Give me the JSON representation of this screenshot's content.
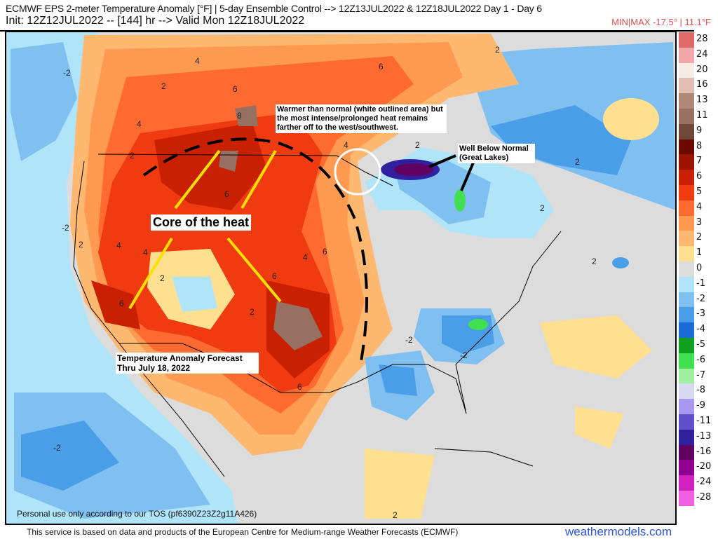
{
  "header": {
    "title": "ECMWF EPS 2-meter Temperature Anomaly [°F] | 5-day Ensemble Control --> 12Z13JUL2022 & 12Z18JUL2022   Day 1 - Day 6",
    "init_line": "Init: 12Z12JUL2022 -- [144] hr --> Valid Mon 12Z18JUL2022",
    "minmax": "MIN|MAX -17.5° | 11.1°F"
  },
  "legend": [
    {
      "label": "28",
      "color": "#e06a6a"
    },
    {
      "label": "24",
      "color": "#f2a8a8"
    },
    {
      "label": "20",
      "color": "#f5ece6"
    },
    {
      "label": "16",
      "color": "#e2beb2"
    },
    {
      "label": "13",
      "color": "#b08878"
    },
    {
      "label": "11",
      "color": "#967060"
    },
    {
      "label": "9",
      "color": "#6e4838"
    },
    {
      "label": "8",
      "color": "#6a0a00"
    },
    {
      "label": "7",
      "color": "#9a1400"
    },
    {
      "label": "6",
      "color": "#c82000"
    },
    {
      "label": "5",
      "color": "#f03a10"
    },
    {
      "label": "4",
      "color": "#ff6a30"
    },
    {
      "label": "3",
      "color": "#ff9a50"
    },
    {
      "label": "2",
      "color": "#ffb870"
    },
    {
      "label": "1",
      "color": "#ffe090"
    },
    {
      "label": "0",
      "color": "#dcdcdc"
    },
    {
      "label": "-1",
      "color": "#b0e4f8"
    },
    {
      "label": "-2",
      "color": "#80c0f0"
    },
    {
      "label": "-3",
      "color": "#4a9ee8"
    },
    {
      "label": "-4",
      "color": "#1a6ad8"
    },
    {
      "label": "-5",
      "color": "#10a020"
    },
    {
      "label": "-6",
      "color": "#40e050"
    },
    {
      "label": "-7",
      "color": "#a0f0a0"
    },
    {
      "label": "-8",
      "color": "#d8d8f0"
    },
    {
      "label": "-9",
      "color": "#a898f0"
    },
    {
      "label": "-11",
      "color": "#6050d0"
    },
    {
      "label": "-13",
      "color": "#3020a0"
    },
    {
      "label": "-16",
      "color": "#600060"
    },
    {
      "label": "-20",
      "color": "#900090"
    },
    {
      "label": "-24",
      "color": "#d020c0"
    },
    {
      "label": "-28",
      "color": "#f060e0"
    }
  ],
  "annotations": {
    "core": "Core of the heat",
    "warmer": "Warmer than normal (white outlined area) but the most intense/prolonged heat remains farther off to the west/southwest.",
    "great_lakes": "Well Below Normal (Great Lakes)",
    "forecast": "Temperature Anomaly Forecast Thru July 18, 2022"
  },
  "contour_labels": [
    "-2",
    "2",
    "4",
    "6",
    "8",
    "4",
    "6",
    "2",
    "4",
    "6",
    "2",
    "4",
    "6",
    "-2",
    "2",
    "4",
    "2",
    "6",
    "6",
    "4",
    "2",
    "-2",
    "2",
    "2",
    "-2",
    "2",
    "6",
    "2",
    "-2",
    "2"
  ],
  "footer": {
    "tos": "Personal use only according to our TOS (pf6390Z23Z2g11A426)",
    "attribution": "This service is based on data and products of the European Centre for Medium-range Weather Forecasts (ECMWF)",
    "brand": "weathermodels.com"
  }
}
